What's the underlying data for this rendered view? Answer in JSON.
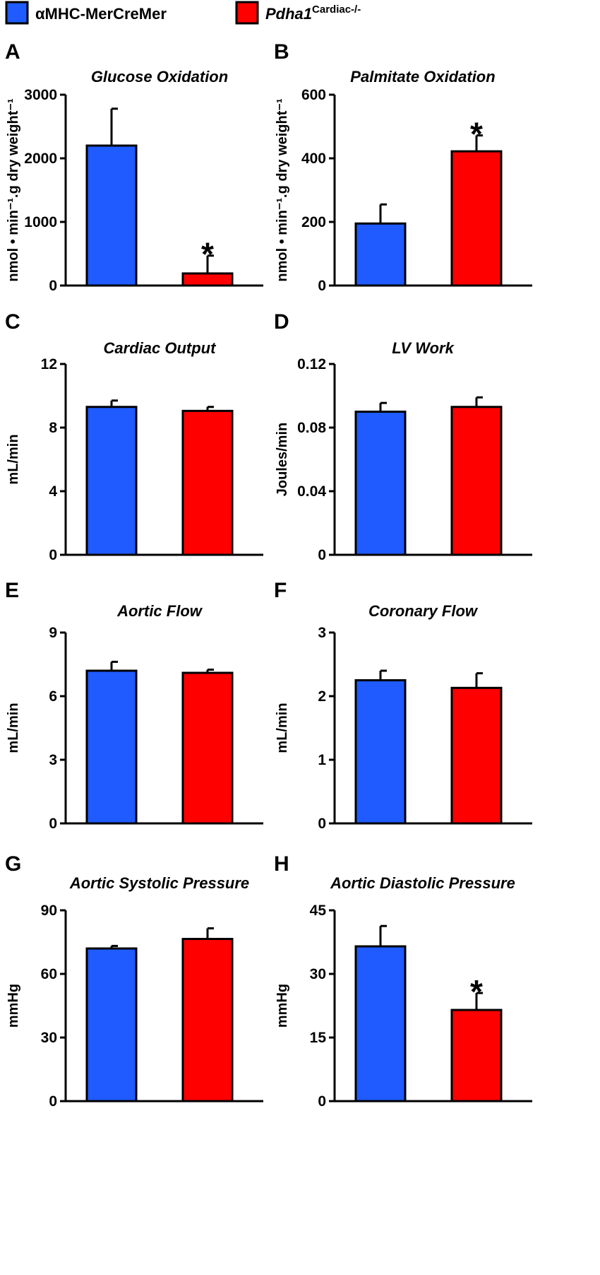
{
  "legend": {
    "items": [
      {
        "label": "αMHC-MerCreMer",
        "color": "#1f5bff"
      },
      {
        "label": "Pdha1",
        "superscript": "Cardiac-/-",
        "color": "#ff0000"
      }
    ]
  },
  "colors": {
    "control": "#1f5bff",
    "knockout": "#ff0000"
  },
  "chart_data": [
    {
      "panel": "A",
      "type": "bar",
      "title": "Glucose Oxidation",
      "ylabel": "nmol • min⁻¹.g dry weight⁻¹",
      "ylim": [
        0,
        3000
      ],
      "yticks": [
        0,
        1000,
        2000,
        3000
      ],
      "categories": [
        "αMHC-MerCreMer",
        "Pdha1 Cardiac-/-"
      ],
      "values": [
        2200,
        190
      ],
      "errors": [
        580,
        280
      ],
      "significant": [
        false,
        true
      ]
    },
    {
      "panel": "B",
      "type": "bar",
      "title": "Palmitate Oxidation",
      "ylabel": "nmol • min⁻¹.g dry weight⁻¹",
      "ylim": [
        0,
        600
      ],
      "yticks": [
        0,
        200,
        400,
        600
      ],
      "categories": [
        "αMHC-MerCreMer",
        "Pdha1 Cardiac-/-"
      ],
      "values": [
        195,
        422
      ],
      "errors": [
        60,
        50
      ],
      "significant": [
        false,
        true
      ]
    },
    {
      "panel": "C",
      "type": "bar",
      "title": "Cardiac Output",
      "ylabel": "mL/min",
      "ylim": [
        0,
        12
      ],
      "yticks": [
        0,
        4,
        8,
        12
      ],
      "categories": [
        "αMHC-MerCreMer",
        "Pdha1 Cardiac-/-"
      ],
      "values": [
        9.3,
        9.05
      ],
      "errors": [
        0.4,
        0.25
      ],
      "significant": [
        false,
        false
      ]
    },
    {
      "panel": "D",
      "type": "bar",
      "title": "LV Work",
      "ylabel": "Joules/min",
      "ylim": [
        0,
        0.12
      ],
      "yticks": [
        0,
        0.04,
        0.08,
        0.12
      ],
      "ytick_labels": [
        "0",
        "0.04",
        "0.08",
        "0.12"
      ],
      "categories": [
        "αMHC-MerCreMer",
        "Pdha1 Cardiac-/-"
      ],
      "values": [
        0.09,
        0.093
      ],
      "errors": [
        0.0055,
        0.006
      ],
      "significant": [
        false,
        false
      ]
    },
    {
      "panel": "E",
      "type": "bar",
      "title": "Aortic Flow",
      "ylabel": "mL/min",
      "ylim": [
        0,
        9
      ],
      "yticks": [
        0,
        3,
        6,
        9
      ],
      "categories": [
        "αMHC-MerCreMer",
        "Pdha1 Cardiac-/-"
      ],
      "values": [
        7.2,
        7.1
      ],
      "errors": [
        0.42,
        0.15
      ],
      "significant": [
        false,
        false
      ]
    },
    {
      "panel": "F",
      "type": "bar",
      "title": "Coronary Flow",
      "ylabel": "mL/min",
      "ylim": [
        0,
        3
      ],
      "yticks": [
        0,
        1,
        2,
        3
      ],
      "categories": [
        "αMHC-MerCreMer",
        "Pdha1 Cardiac-/-"
      ],
      "values": [
        2.25,
        2.13
      ],
      "errors": [
        0.15,
        0.23
      ],
      "significant": [
        false,
        false
      ]
    },
    {
      "panel": "G",
      "type": "bar",
      "title": "Aortic Systolic Pressure",
      "ylabel": "mmHg",
      "ylim": [
        0,
        90
      ],
      "yticks": [
        0,
        30,
        60,
        90
      ],
      "categories": [
        "αMHC-MerCreMer",
        "Pdha1 Cardiac-/-"
      ],
      "values": [
        72,
        76.5
      ],
      "errors": [
        1.2,
        5
      ],
      "significant": [
        false,
        false
      ]
    },
    {
      "panel": "H",
      "type": "bar",
      "title": "Aortic Diastolic Pressure",
      "ylabel": "mmHg",
      "ylim": [
        0,
        45
      ],
      "yticks": [
        0,
        15,
        30,
        45
      ],
      "categories": [
        "αMHC-MerCreMer",
        "Pdha1 Cardiac-/-"
      ],
      "values": [
        36.5,
        21.5
      ],
      "errors": [
        4.8,
        4.0
      ],
      "significant": [
        false,
        true
      ]
    }
  ]
}
